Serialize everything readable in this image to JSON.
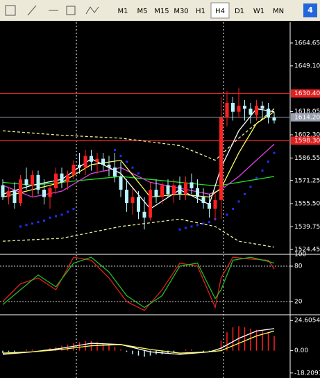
{
  "toolbar": {
    "timeframes": [
      {
        "label": "M1"
      },
      {
        "label": "M5"
      },
      {
        "label": "M15"
      },
      {
        "label": "M30"
      },
      {
        "label": "H1"
      },
      {
        "label": "H4",
        "active": true
      },
      {
        "label": "D1"
      },
      {
        "label": "W1"
      },
      {
        "label": "MN"
      }
    ],
    "badge": "4"
  },
  "price_panel": {
    "ylim": [
      1521.1,
      1678.3
    ],
    "yticks": [
      1664.65,
      {
        "value": 1649.1,
        "label": "1649.10"
      },
      1618.05,
      {
        "value": 1602.3,
        "label": "1602.30"
      },
      1586.55,
      1571.25,
      {
        "value": 1555.5,
        "label": "1555.50"
      },
      1539.75,
      1524.45
    ],
    "levels": [
      {
        "value": 1630.4,
        "label": "1630.40",
        "color": "#e02020"
      },
      {
        "value": 1614.2,
        "label": "1614.20",
        "color": "#9aa0b0"
      },
      {
        "value": 1598.3,
        "label": "1598.30",
        "color": "#e02020"
      }
    ],
    "bull_color": "#ff2020",
    "bear_color": "#b8f4ff",
    "candles": [
      [
        1568,
        1572,
        1558,
        1560
      ],
      [
        1560,
        1566,
        1555,
        1564
      ],
      [
        1564,
        1570,
        1552,
        1556
      ],
      [
        1556,
        1575,
        1554,
        1572
      ],
      [
        1572,
        1580,
        1565,
        1568
      ],
      [
        1568,
        1578,
        1560,
        1575
      ],
      [
        1575,
        1578,
        1562,
        1565
      ],
      [
        1565,
        1572,
        1555,
        1560
      ],
      [
        1560,
        1568,
        1552,
        1566
      ],
      [
        1566,
        1580,
        1562,
        1576
      ],
      [
        1576,
        1580,
        1566,
        1570
      ],
      [
        1570,
        1578,
        1565,
        1575
      ],
      [
        1575,
        1585,
        1572,
        1582
      ],
      [
        1582,
        1590,
        1576,
        1580
      ],
      [
        1580,
        1592,
        1575,
        1588
      ],
      [
        1588,
        1592,
        1578,
        1584
      ],
      [
        1584,
        1590,
        1576,
        1586
      ],
      [
        1586,
        1590,
        1578,
        1582
      ],
      [
        1582,
        1588,
        1574,
        1580
      ],
      [
        1580,
        1590,
        1570,
        1574
      ],
      [
        1574,
        1584,
        1560,
        1565
      ],
      [
        1565,
        1572,
        1550,
        1556
      ],
      [
        1556,
        1566,
        1548,
        1560
      ],
      [
        1560,
        1564,
        1545,
        1550
      ],
      [
        1550,
        1560,
        1538,
        1546
      ],
      [
        1546,
        1570,
        1544,
        1565
      ],
      [
        1565,
        1572,
        1556,
        1560
      ],
      [
        1560,
        1570,
        1555,
        1568
      ],
      [
        1568,
        1572,
        1560,
        1562
      ],
      [
        1562,
        1572,
        1556,
        1568
      ],
      [
        1568,
        1574,
        1558,
        1562
      ],
      [
        1562,
        1574,
        1558,
        1570
      ],
      [
        1570,
        1576,
        1562,
        1566
      ],
      [
        1566,
        1572,
        1556,
        1560
      ],
      [
        1560,
        1566,
        1552,
        1556
      ],
      [
        1556,
        1562,
        1546,
        1552
      ],
      [
        1552,
        1562,
        1544,
        1558
      ],
      [
        1558,
        1628,
        1545,
        1614
      ],
      [
        1614,
        1632,
        1608,
        1624
      ],
      [
        1624,
        1628,
        1612,
        1618
      ],
      [
        1618,
        1634,
        1614,
        1622
      ],
      [
        1622,
        1626,
        1612,
        1620
      ],
      [
        1620,
        1624,
        1610,
        1616
      ],
      [
        1616,
        1626,
        1612,
        1622
      ],
      [
        1622,
        1625,
        1614,
        1620
      ],
      [
        1620,
        1624,
        1610,
        1614
      ],
      [
        1614,
        1618,
        1610,
        1612
      ]
    ],
    "lines": [
      {
        "color": "#f0f0a0",
        "dash": true,
        "x": [
          0,
          10,
          20,
          30,
          36,
          40,
          46
        ],
        "values": [
          1605,
          1602,
          1600,
          1595,
          1585,
          1600,
          1620
        ]
      },
      {
        "color": "#f0f0a0",
        "dash": true,
        "x": [
          0,
          10,
          20,
          30,
          36,
          40,
          46
        ],
        "values": [
          1530,
          1532,
          1540,
          1545,
          1540,
          1530,
          1526
        ]
      },
      {
        "color": "#20e020",
        "x": [
          0,
          5,
          10,
          15,
          20,
          25,
          30,
          35,
          37,
          40,
          43,
          46
        ],
        "values": [
          1570,
          1568,
          1570,
          1572,
          1574,
          1572,
          1570,
          1568,
          1568,
          1570,
          1572,
          1574
        ]
      },
      {
        "color": "#e040e0",
        "x": [
          0,
          5,
          10,
          15,
          20,
          25,
          30,
          35,
          37,
          40,
          43,
          46
        ],
        "values": [
          1568,
          1560,
          1564,
          1576,
          1580,
          1570,
          1566,
          1562,
          1565,
          1574,
          1585,
          1596
        ]
      },
      {
        "color": "#ffff60",
        "x": [
          0,
          5,
          10,
          15,
          20,
          25,
          30,
          35,
          37,
          40,
          43,
          46
        ],
        "values": [
          1560,
          1565,
          1570,
          1582,
          1585,
          1560,
          1562,
          1560,
          1566,
          1590,
          1610,
          1618
        ]
      },
      {
        "color": "#ffffff",
        "x": [
          0,
          5,
          10,
          15,
          20,
          25,
          30,
          35,
          37,
          40,
          43,
          46
        ],
        "values": [
          1562,
          1568,
          1572,
          1586,
          1576,
          1552,
          1565,
          1555,
          1580,
          1605,
          1620,
          1618
        ]
      }
    ],
    "sar": {
      "color": "#2030ff",
      "x": [
        3,
        4,
        5,
        6,
        7,
        8,
        9,
        10,
        11,
        12,
        19,
        20,
        21,
        22,
        23,
        30,
        31,
        32,
        33,
        34,
        35,
        36,
        38,
        39,
        40,
        41,
        42,
        43,
        44,
        45,
        46
      ],
      "values": [
        1540,
        1541,
        1542,
        1543,
        1544,
        1546,
        1547,
        1548,
        1550,
        1552,
        1592,
        1588,
        1584,
        1580,
        1576,
        1538,
        1539,
        1540,
        1541,
        1542,
        1543,
        1545,
        1548,
        1552,
        1557,
        1562,
        1567,
        1573,
        1578,
        1584,
        1590
      ]
    }
  },
  "stoch_panel": {
    "ylim": [
      0,
      100
    ],
    "yticks": [
      100,
      80,
      20
    ],
    "levels": [
      80,
      20
    ],
    "lines": [
      {
        "color": "#e02020",
        "x": [
          0,
          3,
          6,
          9,
          12,
          15,
          18,
          21,
          24,
          27,
          30,
          33,
          36,
          37,
          39,
          42,
          45,
          46
        ],
        "values": [
          20,
          50,
          60,
          40,
          95,
          90,
          60,
          20,
          5,
          40,
          85,
          80,
          10,
          60,
          95,
          92,
          90,
          75
        ]
      },
      {
        "color": "#20c020",
        "x": [
          0,
          3,
          6,
          9,
          12,
          15,
          18,
          21,
          24,
          27,
          30,
          33,
          36,
          37,
          39,
          42,
          45,
          46
        ],
        "values": [
          15,
          40,
          65,
          45,
          85,
          95,
          70,
          30,
          10,
          30,
          80,
          85,
          25,
          40,
          90,
          95,
          88,
          85
        ]
      }
    ]
  },
  "macd_panel": {
    "ylim": [
      -22.3,
      28.7
    ],
    "yticks": [
      24.6054,
      {
        "value": 0,
        "label": "0.00"
      },
      -18.2093
    ],
    "up_color": "#ff2020",
    "down_color": "#b8f4ff",
    "histogram": [
      -2,
      -1,
      -1,
      0,
      1,
      1,
      0,
      1,
      2,
      3,
      4,
      5,
      6,
      7,
      8,
      8,
      7,
      6,
      5,
      3,
      1,
      -1,
      -3,
      -4,
      -5,
      -4,
      -3,
      -3,
      -2,
      -1,
      0,
      1,
      1,
      0,
      -1,
      -1,
      -1,
      8,
      15,
      19,
      20,
      19,
      18,
      17,
      16,
      15,
      12
    ],
    "lines": [
      {
        "color": "#ffffff",
        "x": [
          0,
          5,
          10,
          15,
          20,
          25,
          30,
          35,
          37,
          40,
          43,
          46
        ],
        "values": [
          -3,
          -1,
          2,
          6,
          5,
          -1,
          -3,
          -1,
          2,
          10,
          16,
          18
        ]
      },
      {
        "color": "#ffff60",
        "x": [
          0,
          5,
          10,
          15,
          20,
          25,
          30,
          35,
          37,
          40,
          43,
          46
        ],
        "values": [
          -2,
          -1,
          1,
          4,
          5,
          1,
          -2,
          -1,
          0,
          6,
          12,
          16
        ]
      }
    ]
  }
}
